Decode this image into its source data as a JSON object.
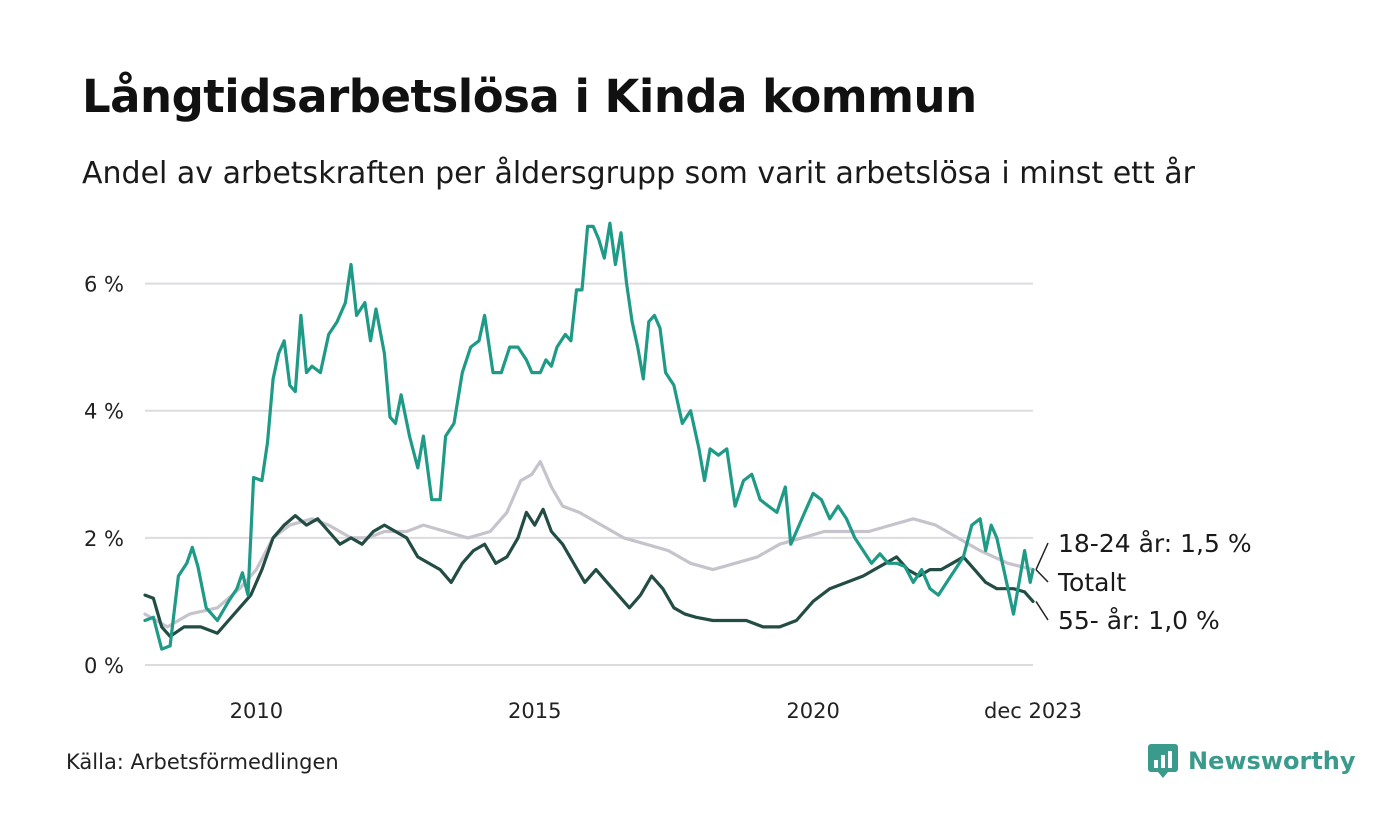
{
  "title": "Långtidsarbetslösa i Kinda kommun",
  "subtitle": "Andel av arbetskraften per åldersgrupp som varit arbetslösa i minst ett år",
  "source": "Källa: Arbetsförmedlingen",
  "brand": {
    "name": "Newsworthy",
    "icon": "bar-chart-logo-icon",
    "color": "#3a9a8c"
  },
  "chart_data": {
    "type": "line",
    "title": "Långtidsarbetslösa i Kinda kommun",
    "ylim": [
      0,
      7
    ],
    "xlim": [
      2008.0,
      2023.95
    ],
    "yticks": [
      0,
      2,
      4,
      6
    ],
    "ytick_labels": [
      "0 %",
      "2 %",
      "4 %",
      "6 %"
    ],
    "xticks": [
      2010,
      2015,
      2020,
      2023.95
    ],
    "xtick_labels": [
      "2010",
      "2015",
      "2020",
      "dec 2023"
    ],
    "grid": "horizontal",
    "series": [
      {
        "name": "Totalt",
        "label": "Totalt",
        "color": "#c6c3cc",
        "points": [
          [
            2008.0,
            0.8
          ],
          [
            2008.4,
            0.6
          ],
          [
            2008.8,
            0.8
          ],
          [
            2009.3,
            0.9
          ],
          [
            2009.7,
            1.2
          ],
          [
            2010.0,
            1.5
          ],
          [
            2010.3,
            2.0
          ],
          [
            2010.6,
            2.2
          ],
          [
            2011.0,
            2.3
          ],
          [
            2011.3,
            2.2
          ],
          [
            2011.7,
            2.0
          ],
          [
            2012.0,
            2.0
          ],
          [
            2012.3,
            2.1
          ],
          [
            2012.7,
            2.1
          ],
          [
            2013.0,
            2.2
          ],
          [
            2013.4,
            2.1
          ],
          [
            2013.8,
            2.0
          ],
          [
            2014.2,
            2.1
          ],
          [
            2014.5,
            2.4
          ],
          [
            2014.75,
            2.9
          ],
          [
            2014.95,
            3.0
          ],
          [
            2015.1,
            3.2
          ],
          [
            2015.3,
            2.8
          ],
          [
            2015.5,
            2.5
          ],
          [
            2015.8,
            2.4
          ],
          [
            2016.2,
            2.2
          ],
          [
            2016.6,
            2.0
          ],
          [
            2017.0,
            1.9
          ],
          [
            2017.4,
            1.8
          ],
          [
            2017.8,
            1.6
          ],
          [
            2018.2,
            1.5
          ],
          [
            2018.6,
            1.6
          ],
          [
            2019.0,
            1.7
          ],
          [
            2019.4,
            1.9
          ],
          [
            2019.8,
            2.0
          ],
          [
            2020.2,
            2.1
          ],
          [
            2020.6,
            2.1
          ],
          [
            2021.0,
            2.1
          ],
          [
            2021.4,
            2.2
          ],
          [
            2021.8,
            2.3
          ],
          [
            2022.2,
            2.2
          ],
          [
            2022.6,
            2.0
          ],
          [
            2023.0,
            1.8
          ],
          [
            2023.5,
            1.6
          ],
          [
            2023.95,
            1.5
          ]
        ]
      },
      {
        "name": "55- år",
        "label": "55- år: 1,0 %",
        "color": "#234d44",
        "points": [
          [
            2008.0,
            1.1
          ],
          [
            2008.15,
            1.05
          ],
          [
            2008.3,
            0.6
          ],
          [
            2008.45,
            0.45
          ],
          [
            2008.7,
            0.6
          ],
          [
            2009.0,
            0.6
          ],
          [
            2009.3,
            0.5
          ],
          [
            2009.5,
            0.7
          ],
          [
            2009.7,
            0.9
          ],
          [
            2009.9,
            1.1
          ],
          [
            2010.1,
            1.5
          ],
          [
            2010.3,
            2.0
          ],
          [
            2010.5,
            2.2
          ],
          [
            2010.7,
            2.35
          ],
          [
            2010.9,
            2.2
          ],
          [
            2011.1,
            2.3
          ],
          [
            2011.3,
            2.1
          ],
          [
            2011.5,
            1.9
          ],
          [
            2011.7,
            2.0
          ],
          [
            2011.9,
            1.9
          ],
          [
            2012.1,
            2.1
          ],
          [
            2012.3,
            2.2
          ],
          [
            2012.5,
            2.1
          ],
          [
            2012.7,
            2.0
          ],
          [
            2012.9,
            1.7
          ],
          [
            2013.1,
            1.6
          ],
          [
            2013.3,
            1.5
          ],
          [
            2013.5,
            1.3
          ],
          [
            2013.7,
            1.6
          ],
          [
            2013.9,
            1.8
          ],
          [
            2014.1,
            1.9
          ],
          [
            2014.3,
            1.6
          ],
          [
            2014.5,
            1.7
          ],
          [
            2014.7,
            2.0
          ],
          [
            2014.85,
            2.4
          ],
          [
            2015.0,
            2.2
          ],
          [
            2015.15,
            2.45
          ],
          [
            2015.3,
            2.1
          ],
          [
            2015.5,
            1.9
          ],
          [
            2015.7,
            1.6
          ],
          [
            2015.9,
            1.3
          ],
          [
            2016.1,
            1.5
          ],
          [
            2016.3,
            1.3
          ],
          [
            2016.5,
            1.1
          ],
          [
            2016.7,
            0.9
          ],
          [
            2016.9,
            1.1
          ],
          [
            2017.1,
            1.4
          ],
          [
            2017.3,
            1.2
          ],
          [
            2017.5,
            0.9
          ],
          [
            2017.7,
            0.8
          ],
          [
            2017.9,
            0.75
          ],
          [
            2018.2,
            0.7
          ],
          [
            2018.5,
            0.7
          ],
          [
            2018.8,
            0.7
          ],
          [
            2019.1,
            0.6
          ],
          [
            2019.4,
            0.6
          ],
          [
            2019.7,
            0.7
          ],
          [
            2020.0,
            1.0
          ],
          [
            2020.3,
            1.2
          ],
          [
            2020.6,
            1.3
          ],
          [
            2020.9,
            1.4
          ],
          [
            2021.1,
            1.5
          ],
          [
            2021.3,
            1.6
          ],
          [
            2021.5,
            1.7
          ],
          [
            2021.7,
            1.5
          ],
          [
            2021.9,
            1.4
          ],
          [
            2022.1,
            1.5
          ],
          [
            2022.3,
            1.5
          ],
          [
            2022.5,
            1.6
          ],
          [
            2022.7,
            1.7
          ],
          [
            2022.9,
            1.5
          ],
          [
            2023.1,
            1.3
          ],
          [
            2023.3,
            1.2
          ],
          [
            2023.6,
            1.2
          ],
          [
            2023.8,
            1.15
          ],
          [
            2023.95,
            1.0
          ]
        ]
      },
      {
        "name": "18-24 år",
        "label": "18-24 år: 1,5 %",
        "color": "#1e9a87",
        "points": [
          [
            2008.0,
            0.7
          ],
          [
            2008.15,
            0.75
          ],
          [
            2008.3,
            0.25
          ],
          [
            2008.45,
            0.3
          ],
          [
            2008.6,
            1.4
          ],
          [
            2008.75,
            1.6
          ],
          [
            2008.85,
            1.85
          ],
          [
            2008.95,
            1.55
          ],
          [
            2009.1,
            0.9
          ],
          [
            2009.3,
            0.7
          ],
          [
            2009.5,
            1.0
          ],
          [
            2009.65,
            1.2
          ],
          [
            2009.75,
            1.45
          ],
          [
            2009.85,
            1.1
          ],
          [
            2009.95,
            2.95
          ],
          [
            2010.1,
            2.9
          ],
          [
            2010.2,
            3.5
          ],
          [
            2010.3,
            4.5
          ],
          [
            2010.4,
            4.9
          ],
          [
            2010.5,
            5.1
          ],
          [
            2010.6,
            4.4
          ],
          [
            2010.7,
            4.3
          ],
          [
            2010.8,
            5.5
          ],
          [
            2010.9,
            4.6
          ],
          [
            2011.0,
            4.7
          ],
          [
            2011.15,
            4.6
          ],
          [
            2011.3,
            5.2
          ],
          [
            2011.45,
            5.4
          ],
          [
            2011.6,
            5.7
          ],
          [
            2011.7,
            6.3
          ],
          [
            2011.8,
            5.5
          ],
          [
            2011.95,
            5.7
          ],
          [
            2012.05,
            5.1
          ],
          [
            2012.15,
            5.6
          ],
          [
            2012.3,
            4.9
          ],
          [
            2012.4,
            3.9
          ],
          [
            2012.5,
            3.8
          ],
          [
            2012.6,
            4.25
          ],
          [
            2012.75,
            3.6
          ],
          [
            2012.9,
            3.1
          ],
          [
            2013.0,
            3.6
          ],
          [
            2013.15,
            2.6
          ],
          [
            2013.3,
            2.6
          ],
          [
            2013.4,
            3.6
          ],
          [
            2013.55,
            3.8
          ],
          [
            2013.7,
            4.6
          ],
          [
            2013.85,
            5.0
          ],
          [
            2014.0,
            5.1
          ],
          [
            2014.1,
            5.5
          ],
          [
            2014.25,
            4.6
          ],
          [
            2014.4,
            4.6
          ],
          [
            2014.55,
            5.0
          ],
          [
            2014.7,
            5.0
          ],
          [
            2014.85,
            4.8
          ],
          [
            2014.95,
            4.6
          ],
          [
            2015.1,
            4.6
          ],
          [
            2015.2,
            4.8
          ],
          [
            2015.3,
            4.7
          ],
          [
            2015.4,
            5.0
          ],
          [
            2015.55,
            5.2
          ],
          [
            2015.65,
            5.1
          ],
          [
            2015.75,
            5.9
          ],
          [
            2015.85,
            5.9
          ],
          [
            2015.95,
            6.9
          ],
          [
            2016.05,
            6.9
          ],
          [
            2016.15,
            6.7
          ],
          [
            2016.25,
            6.4
          ],
          [
            2016.35,
            6.95
          ],
          [
            2016.45,
            6.3
          ],
          [
            2016.55,
            6.8
          ],
          [
            2016.65,
            6.0
          ],
          [
            2016.75,
            5.4
          ],
          [
            2016.85,
            5.0
          ],
          [
            2016.95,
            4.5
          ],
          [
            2017.05,
            5.4
          ],
          [
            2017.15,
            5.5
          ],
          [
            2017.25,
            5.3
          ],
          [
            2017.35,
            4.6
          ],
          [
            2017.5,
            4.4
          ],
          [
            2017.65,
            3.8
          ],
          [
            2017.8,
            4.0
          ],
          [
            2017.95,
            3.4
          ],
          [
            2018.05,
            2.9
          ],
          [
            2018.15,
            3.4
          ],
          [
            2018.3,
            3.3
          ],
          [
            2018.45,
            3.4
          ],
          [
            2018.6,
            2.5
          ],
          [
            2018.75,
            2.9
          ],
          [
            2018.9,
            3.0
          ],
          [
            2019.05,
            2.6
          ],
          [
            2019.2,
            2.5
          ],
          [
            2019.35,
            2.4
          ],
          [
            2019.5,
            2.8
          ],
          [
            2019.6,
            1.9
          ],
          [
            2019.7,
            2.1
          ],
          [
            2019.85,
            2.4
          ],
          [
            2020.0,
            2.7
          ],
          [
            2020.15,
            2.6
          ],
          [
            2020.3,
            2.3
          ],
          [
            2020.45,
            2.5
          ],
          [
            2020.6,
            2.3
          ],
          [
            2020.75,
            2.0
          ],
          [
            2020.9,
            1.8
          ],
          [
            2021.05,
            1.6
          ],
          [
            2021.2,
            1.75
          ],
          [
            2021.35,
            1.6
          ],
          [
            2021.5,
            1.6
          ],
          [
            2021.65,
            1.55
          ],
          [
            2021.8,
            1.3
          ],
          [
            2021.95,
            1.5
          ],
          [
            2022.1,
            1.2
          ],
          [
            2022.25,
            1.1
          ],
          [
            2022.4,
            1.3
          ],
          [
            2022.55,
            1.5
          ],
          [
            2022.7,
            1.7
          ],
          [
            2022.85,
            2.2
          ],
          [
            2023.0,
            2.3
          ],
          [
            2023.1,
            1.8
          ],
          [
            2023.2,
            2.2
          ],
          [
            2023.3,
            2.0
          ],
          [
            2023.45,
            1.4
          ],
          [
            2023.6,
            0.8
          ],
          [
            2023.7,
            1.3
          ],
          [
            2023.8,
            1.8
          ],
          [
            2023.9,
            1.3
          ],
          [
            2023.95,
            1.5
          ]
        ]
      }
    ]
  }
}
